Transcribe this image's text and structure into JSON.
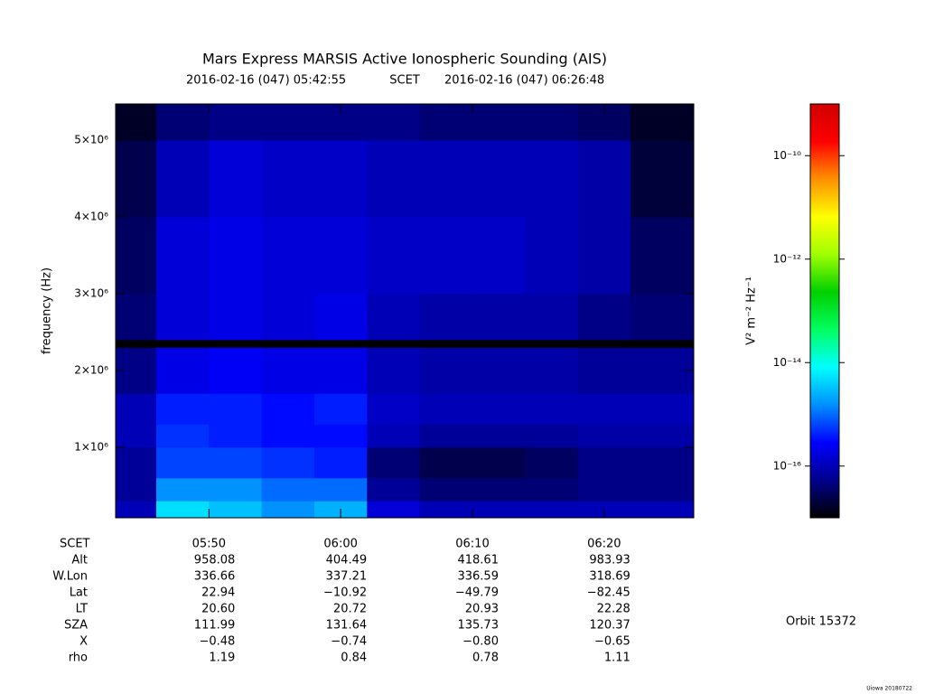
{
  "chart_data": {
    "type": "spectrogram",
    "title": "Mars Express MARSIS Active Ionospheric Sounding (AIS)",
    "time_label": "SCET",
    "ylabel": "frequency (Hz)",
    "colorbar_label": "V² m⁻² Hz⁻¹",
    "xlim": [
      "2016-02-16 (047) 05:42:55",
      "2016-02-16 (047) 06:26:48"
    ],
    "xticks": [
      "05:50",
      "06:00",
      "06:10",
      "06:20"
    ],
    "ylim": [
      80000,
      5470000
    ],
    "yticks": [
      {
        "value": 1000000,
        "label": "1×10⁶"
      },
      {
        "value": 2000000,
        "label": "2×10⁶"
      },
      {
        "value": 3000000,
        "label": "3×10⁶"
      },
      {
        "value": 4000000,
        "label": "4×10⁶"
      },
      {
        "value": 5000000,
        "label": "5×10⁶"
      }
    ],
    "zlim": [
      -17,
      -9
    ],
    "zticks": [
      {
        "value": -10,
        "label": "10⁻¹⁰"
      },
      {
        "value": -12,
        "label": "10⁻¹²"
      },
      {
        "value": -14,
        "label": "10⁻¹⁴"
      },
      {
        "value": -16,
        "label": "10⁻¹⁶"
      }
    ],
    "log_color_scale": true,
    "colormap": [
      "#000000",
      "#00008c",
      "#0000ff",
      "#0090ff",
      "#00ffff",
      "#00ff60",
      "#00d000",
      "#a0ff00",
      "#ffff00",
      "#ff9000",
      "#ff0000",
      "#d00000"
    ],
    "x_bins": [
      "05:42:55",
      "05:46",
      "05:50",
      "05:54",
      "05:58",
      "06:02",
      "06:06",
      "06:10",
      "06:14",
      "06:18",
      "06:22",
      "06:26:48"
    ],
    "y_bins": [
      80000,
      300000,
      600000,
      1000000,
      1300000,
      1700000,
      2300000,
      2400000,
      3000000,
      4000000,
      5000000,
      5470000
    ],
    "z": [
      [
        -16.0,
        -14.3,
        -14.5,
        -14.8,
        -14.6,
        -15.8,
        -16.0,
        -16.0,
        -16.0,
        -16.0,
        -16.0
      ],
      [
        -16.2,
        -14.8,
        -14.8,
        -15.0,
        -15.0,
        -16.2,
        -16.4,
        -16.4,
        -16.4,
        -16.3,
        -16.3
      ],
      [
        -16.2,
        -15.2,
        -15.2,
        -15.3,
        -15.4,
        -16.4,
        -16.6,
        -16.6,
        -16.5,
        -16.3,
        -16.3
      ],
      [
        -16.0,
        -15.3,
        -15.4,
        -15.5,
        -15.5,
        -16.0,
        -16.2,
        -16.2,
        -16.2,
        -16.1,
        -16.1
      ],
      [
        -16.0,
        -15.4,
        -15.4,
        -15.5,
        -15.4,
        -15.9,
        -16.0,
        -16.0,
        -16.0,
        -16.0,
        -16.0
      ],
      [
        -16.3,
        -15.7,
        -15.6,
        -15.7,
        -15.7,
        -16.0,
        -16.1,
        -16.1,
        -16.1,
        -16.2,
        -16.2
      ],
      [
        -17.0,
        -17.0,
        -17.0,
        -17.0,
        -17.0,
        -17.0,
        -17.0,
        -17.0,
        -17.0,
        -17.0,
        -17.0
      ],
      [
        -16.4,
        -15.8,
        -15.7,
        -15.8,
        -15.7,
        -16.0,
        -16.1,
        -16.1,
        -16.1,
        -16.3,
        -16.4
      ],
      [
        -16.5,
        -15.8,
        -15.7,
        -15.8,
        -15.8,
        -15.9,
        -15.9,
        -15.9,
        -16.0,
        -16.1,
        -16.5
      ],
      [
        -16.6,
        -16.0,
        -15.8,
        -15.9,
        -15.9,
        -16.0,
        -16.0,
        -16.0,
        -16.0,
        -16.1,
        -16.7
      ],
      [
        -16.8,
        -16.4,
        -16.3,
        -16.3,
        -16.3,
        -16.3,
        -16.4,
        -16.4,
        -16.4,
        -16.5,
        -16.8
      ]
    ],
    "ephemeris": {
      "labels": [
        "Alt",
        "W.Lon",
        "Lat",
        "LT",
        "SZA",
        "X",
        "rho"
      ],
      "rows": [
        [
          "958.08",
          "404.49",
          "418.61",
          "983.93"
        ],
        [
          "336.66",
          "337.21",
          "336.59",
          "318.69"
        ],
        [
          "22.94",
          "−10.92",
          "−49.79",
          "−82.45"
        ],
        [
          "20.60",
          "20.72",
          "20.93",
          "22.28"
        ],
        [
          "111.99",
          "131.64",
          "135.73",
          "120.37"
        ],
        [
          "−0.48",
          "−0.74",
          "−0.80",
          "−0.65"
        ],
        [
          "1.19",
          "0.84",
          "0.78",
          "1.11"
        ]
      ]
    },
    "orbit": "Orbit 15372",
    "credit": "Uiowa 20180722"
  }
}
